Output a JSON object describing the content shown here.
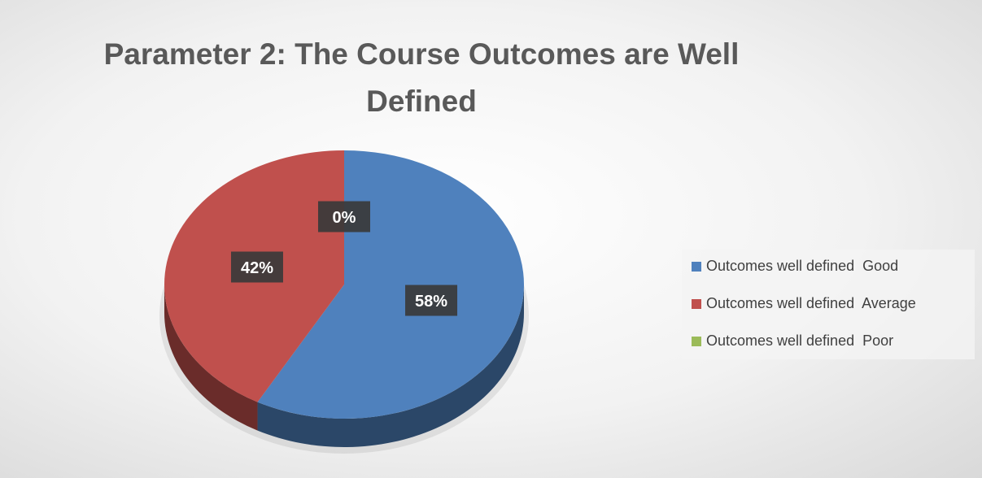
{
  "chart_data": {
    "type": "pie3d",
    "title": "Parameter 2: The Course Outcomes are Well Defined",
    "categories": [
      "Outcomes well defined  Good",
      "Outcomes well defined  Average",
      "Outcomes well defined  Poor"
    ],
    "values": [
      58,
      42,
      0
    ],
    "value_labels": [
      "58%",
      "42%",
      "0%"
    ],
    "colors": [
      "#4f81bd",
      "#c0504d",
      "#9bbb59"
    ],
    "legend": "right"
  }
}
